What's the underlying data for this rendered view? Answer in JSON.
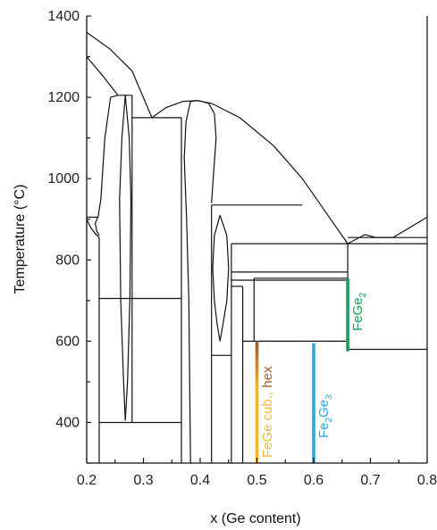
{
  "chart_data": {
    "type": "line",
    "xlabel": "x (Ge content)",
    "ylabel": "Temperature (°C)",
    "xlim": [
      0.2,
      0.8
    ],
    "ylim": [
      300,
      1400
    ],
    "x_ticks": [
      0.2,
      0.3,
      0.4,
      0.5,
      0.6,
      0.7,
      0.8
    ],
    "y_ticks": [
      400,
      600,
      800,
      1000,
      1200,
      1400
    ],
    "grid": false,
    "phase_lines": [
      {
        "name": "FeGe cub., hex",
        "colors": [
          "#f5b731",
          "#9b5a2a"
        ],
        "x": 0.5,
        "y_range": [
          300,
          600
        ]
      },
      {
        "name": "Fe2Ge3",
        "color": "#29a8e0",
        "x": 0.6,
        "y_range": [
          300,
          595
        ]
      },
      {
        "name": "FeGe2",
        "color": "#1e9e5a",
        "x": 0.66,
        "y_range": [
          575,
          755
        ]
      }
    ],
    "labels": [
      {
        "base": "FeGe cub., hex",
        "sub": "",
        "color_start": "#f5b731",
        "color_end": "#9b5a2a"
      },
      {
        "base": "Fe",
        "sub": "2",
        "base2": "Ge",
        "sub2": "3",
        "color": "#29a8e0"
      },
      {
        "base": "FeGe",
        "sub": "2",
        "color": "#1e9e5a"
      }
    ],
    "boundaries": [
      [
        [
          0.2,
          1360
        ],
        [
          0.24,
          1320
        ],
        [
          0.28,
          1265
        ],
        [
          0.315,
          1150
        ]
      ],
      [
        [
          0.2,
          1300
        ],
        [
          0.23,
          1250
        ],
        [
          0.255,
          1205
        ]
      ],
      [
        [
          0.315,
          1150
        ],
        [
          0.34,
          1175
        ],
        [
          0.37,
          1190
        ],
        [
          0.395,
          1192
        ],
        [
          0.42,
          1185
        ],
        [
          0.47,
          1150
        ],
        [
          0.53,
          1080
        ],
        [
          0.58,
          1000
        ],
        [
          0.63,
          900
        ],
        [
          0.66,
          840
        ]
      ],
      [
        [
          0.66,
          840
        ],
        [
          0.69,
          862
        ],
        [
          0.71,
          855
        ]
      ],
      [
        [
          0.71,
          855
        ],
        [
          0.74,
          855
        ],
        [
          0.8,
          905
        ]
      ],
      [
        [
          0.2,
          880
        ],
        [
          0.2,
          905
        ]
      ],
      [
        [
          0.2,
          905
        ],
        [
          0.22,
          905
        ]
      ],
      [
        [
          0.22,
          905
        ],
        [
          0.225,
          950
        ],
        [
          0.232,
          1100
        ],
        [
          0.242,
          1200
        ],
        [
          0.255,
          1205
        ]
      ],
      [
        [
          0.255,
          1205
        ],
        [
          0.28,
          1205
        ]
      ],
      [
        [
          0.22,
          905
        ],
        [
          0.215,
          890
        ],
        [
          0.218,
          870
        ],
        [
          0.222,
          860
        ]
      ],
      [
        [
          0.2,
          900
        ],
        [
          0.207,
          880
        ],
        [
          0.215,
          865
        ],
        [
          0.222,
          855
        ]
      ],
      [
        [
          0.222,
          855
        ],
        [
          0.222,
          300
        ]
      ],
      [
        [
          0.268,
          1205
        ],
        [
          0.262,
          1100
        ],
        [
          0.258,
          950
        ],
        [
          0.26,
          700
        ],
        [
          0.265,
          500
        ],
        [
          0.268,
          405
        ]
      ],
      [
        [
          0.268,
          1205
        ],
        [
          0.275,
          1100
        ],
        [
          0.278,
          950
        ],
        [
          0.276,
          700
        ],
        [
          0.272,
          500
        ],
        [
          0.268,
          405
        ]
      ],
      [
        [
          0.222,
          705
        ],
        [
          0.367,
          705
        ]
      ],
      [
        [
          0.222,
          400
        ],
        [
          0.367,
          400
        ]
      ],
      [
        [
          0.28,
          1150
        ],
        [
          0.367,
          1150
        ]
      ],
      [
        [
          0.28,
          1205
        ],
        [
          0.28,
          1150
        ]
      ],
      [
        [
          0.28,
          1150
        ],
        [
          0.28,
          400
        ]
      ],
      [
        [
          0.367,
          1150
        ],
        [
          0.367,
          300
        ]
      ],
      [
        [
          0.383,
          1190
        ],
        [
          0.375,
          1140
        ],
        [
          0.372,
          1050
        ],
        [
          0.376,
          900
        ],
        [
          0.38,
          700
        ],
        [
          0.383,
          300
        ]
      ],
      [
        [
          0.383,
          1190
        ],
        [
          0.397,
          1192
        ],
        [
          0.415,
          1185
        ],
        [
          0.425,
          1160
        ],
        [
          0.428,
          1100
        ],
        [
          0.423,
          1000
        ],
        [
          0.42,
          940
        ]
      ],
      [
        [
          0.42,
          935
        ],
        [
          0.58,
          935
        ]
      ],
      [
        [
          0.42,
          935
        ],
        [
          0.42,
          300
        ]
      ],
      [
        [
          0.42,
          565
        ],
        [
          0.455,
          565
        ]
      ],
      [
        [
          0.435,
          910
        ],
        [
          0.425,
          860
        ],
        [
          0.422,
          780
        ],
        [
          0.425,
          700
        ],
        [
          0.43,
          640
        ],
        [
          0.435,
          600
        ]
      ],
      [
        [
          0.435,
          910
        ],
        [
          0.447,
          860
        ],
        [
          0.45,
          780
        ],
        [
          0.447,
          700
        ],
        [
          0.44,
          640
        ],
        [
          0.435,
          600
        ]
      ],
      [
        [
          0.455,
          840
        ],
        [
          0.8,
          840
        ]
      ],
      [
        [
          0.455,
          840
        ],
        [
          0.455,
          300
        ]
      ],
      [
        [
          0.455,
          770
        ],
        [
          0.66,
          770
        ]
      ],
      [
        [
          0.455,
          750
        ],
        [
          0.66,
          750
        ]
      ],
      [
        [
          0.455,
          735
        ],
        [
          0.475,
          735
        ]
      ],
      [
        [
          0.475,
          735
        ],
        [
          0.475,
          300
        ]
      ],
      [
        [
          0.475,
          600
        ],
        [
          0.66,
          600
        ]
      ],
      [
        [
          0.495,
          755
        ],
        [
          0.66,
          755
        ]
      ],
      [
        [
          0.495,
          755
        ],
        [
          0.495,
          600
        ]
      ],
      [
        [
          0.66,
          840
        ],
        [
          0.66,
          580
        ]
      ],
      [
        [
          0.66,
          580
        ],
        [
          0.8,
          580
        ]
      ],
      [
        [
          0.8,
          300
        ],
        [
          0.8,
          1400
        ]
      ],
      [
        [
          0.8,
          855
        ],
        [
          0.66,
          855
        ]
      ]
    ]
  }
}
